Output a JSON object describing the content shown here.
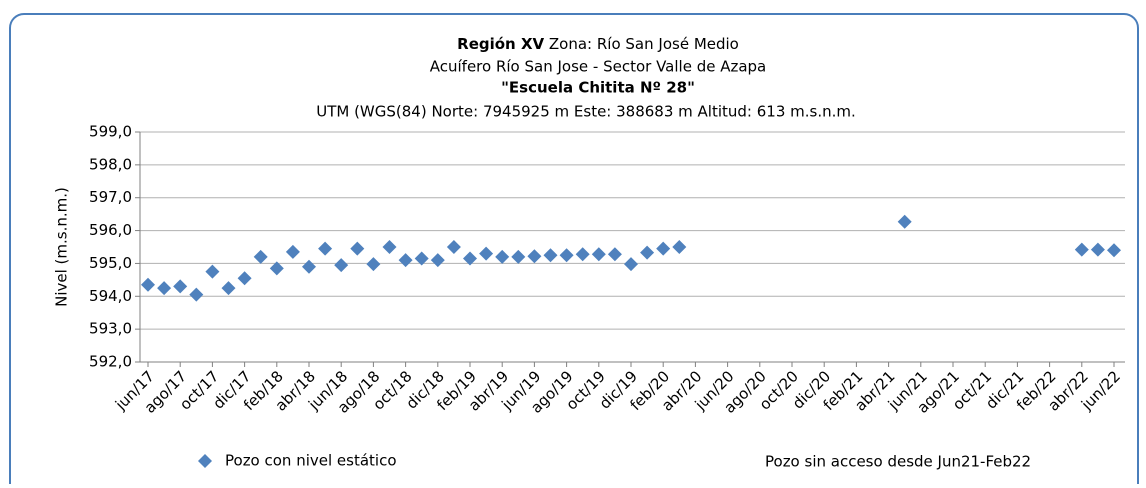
{
  "chart_data": {
    "type": "scatter",
    "title": {
      "bold": "Región XV",
      "rest": "Zona: Río San José Medio"
    },
    "subtitle": "Acuífero Río San Jose - Sector Valle de Azapa",
    "station": "\"Escuela Chitita Nº 28\"",
    "coordinates": "UTM (WGS(84) Norte: 7945925 m Este: 388683 m  Altitud: 613 m.s.n.m.",
    "y_label": "Nivel (m.s.n.m.)",
    "annotation": "Pozo sin acceso  desde Jun21-Feb22",
    "grid": true,
    "xlim": [
      "2017-06",
      "2022-06"
    ],
    "ylim": [
      592,
      599
    ],
    "yticks": [
      {
        "value": 592,
        "label": "592,0"
      },
      {
        "value": 593,
        "label": "593,0"
      },
      {
        "value": 594,
        "label": "594,0"
      },
      {
        "value": 595,
        "label": "595,0"
      },
      {
        "value": 596,
        "label": "596,0"
      },
      {
        "value": 597,
        "label": "597,0"
      },
      {
        "value": 598,
        "label": "598,0"
      },
      {
        "value": 599,
        "label": "599,0"
      }
    ],
    "xticks": [
      {
        "value": "2017-06",
        "label": "jun/17"
      },
      {
        "value": "2017-08",
        "label": "ago/17"
      },
      {
        "value": "2017-10",
        "label": "oct/17"
      },
      {
        "value": "2017-12",
        "label": "dic/17"
      },
      {
        "value": "2018-02",
        "label": "feb/18"
      },
      {
        "value": "2018-04",
        "label": "abr/18"
      },
      {
        "value": "2018-06",
        "label": "jun/18"
      },
      {
        "value": "2018-08",
        "label": "ago/18"
      },
      {
        "value": "2018-10",
        "label": "oct/18"
      },
      {
        "value": "2018-12",
        "label": "dic/18"
      },
      {
        "value": "2019-02",
        "label": "feb/19"
      },
      {
        "value": "2019-04",
        "label": "abr/19"
      },
      {
        "value": "2019-06",
        "label": "jun/19"
      },
      {
        "value": "2019-08",
        "label": "ago/19"
      },
      {
        "value": "2019-10",
        "label": "oct/19"
      },
      {
        "value": "2019-12",
        "label": "dic/19"
      },
      {
        "value": "2020-02",
        "label": "feb/20"
      },
      {
        "value": "2020-04",
        "label": "abr/20"
      },
      {
        "value": "2020-06",
        "label": "jun/20"
      },
      {
        "value": "2020-08",
        "label": "ago/20"
      },
      {
        "value": "2020-10",
        "label": "oct/20"
      },
      {
        "value": "2020-12",
        "label": "dic/20"
      },
      {
        "value": "2021-02",
        "label": "feb/21"
      },
      {
        "value": "2021-04",
        "label": "abr/21"
      },
      {
        "value": "2021-06",
        "label": "jun/21"
      },
      {
        "value": "2021-08",
        "label": "ago/21"
      },
      {
        "value": "2021-10",
        "label": "oct/21"
      },
      {
        "value": "2021-12",
        "label": "dic/21"
      },
      {
        "value": "2022-02",
        "label": "feb/22"
      },
      {
        "value": "2022-04",
        "label": "abr/22"
      },
      {
        "value": "2022-06",
        "label": "jun/22"
      }
    ],
    "series": [
      {
        "name": "Pozo con nivel estático",
        "color": "#4f81bd",
        "x": [
          "2017-06",
          "2017-07",
          "2017-08",
          "2017-09",
          "2017-10",
          "2017-11",
          "2017-12",
          "2018-01",
          "2018-02",
          "2018-03",
          "2018-04",
          "2018-05",
          "2018-06",
          "2018-07",
          "2018-08",
          "2018-09",
          "2018-10",
          "2018-11",
          "2018-12",
          "2019-01",
          "2019-02",
          "2019-03",
          "2019-04",
          "2019-05",
          "2019-06",
          "2019-07",
          "2019-08",
          "2019-09",
          "2019-10",
          "2019-11",
          "2019-12",
          "2020-01",
          "2020-02",
          "2020-03",
          "2021-05",
          "2022-04",
          "2022-05",
          "2022-06"
        ],
        "values": [
          594.35,
          594.25,
          594.3,
          594.05,
          594.75,
          594.25,
          594.55,
          595.2,
          594.85,
          595.35,
          594.9,
          595.45,
          594.95,
          595.45,
          594.98,
          595.5,
          595.1,
          595.15,
          595.1,
          595.5,
          595.15,
          595.3,
          595.2,
          595.2,
          595.22,
          595.25,
          595.25,
          595.28,
          595.28,
          595.28,
          594.98,
          595.33,
          595.45,
          595.5,
          596.27,
          595.42,
          595.42,
          595.4
        ]
      }
    ]
  }
}
